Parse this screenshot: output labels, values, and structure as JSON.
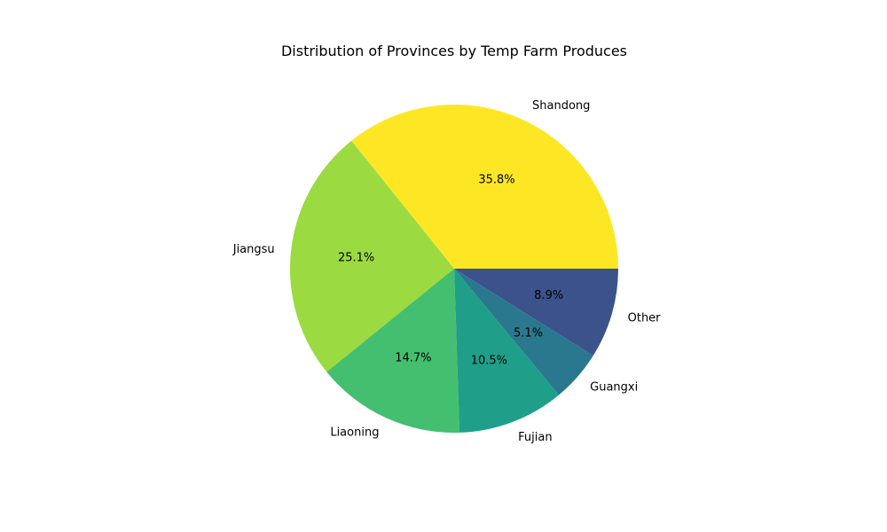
{
  "chart_data": {
    "type": "pie",
    "title": "Distribution of Provinces by Temp Farm Produces",
    "start_angle_deg": 0,
    "direction": "counterclockwise",
    "slices": [
      {
        "label": "Shandong",
        "value": 35.8,
        "pct_text": "35.8%",
        "color": "#fde725"
      },
      {
        "label": "Jiangsu",
        "value": 25.1,
        "pct_text": "25.1%",
        "color": "#9bdb41"
      },
      {
        "label": "Liaoning",
        "value": 14.7,
        "pct_text": "14.7%",
        "color": "#44bf70"
      },
      {
        "label": "Fujian",
        "value": 10.5,
        "pct_text": "10.5%",
        "color": "#1f9f89"
      },
      {
        "label": "Guangxi",
        "value": 5.1,
        "pct_text": "5.1%",
        "color": "#2a788e"
      },
      {
        "label": "Other",
        "value": 8.9,
        "pct_text": "8.9%",
        "color": "#3b528b"
      }
    ]
  }
}
